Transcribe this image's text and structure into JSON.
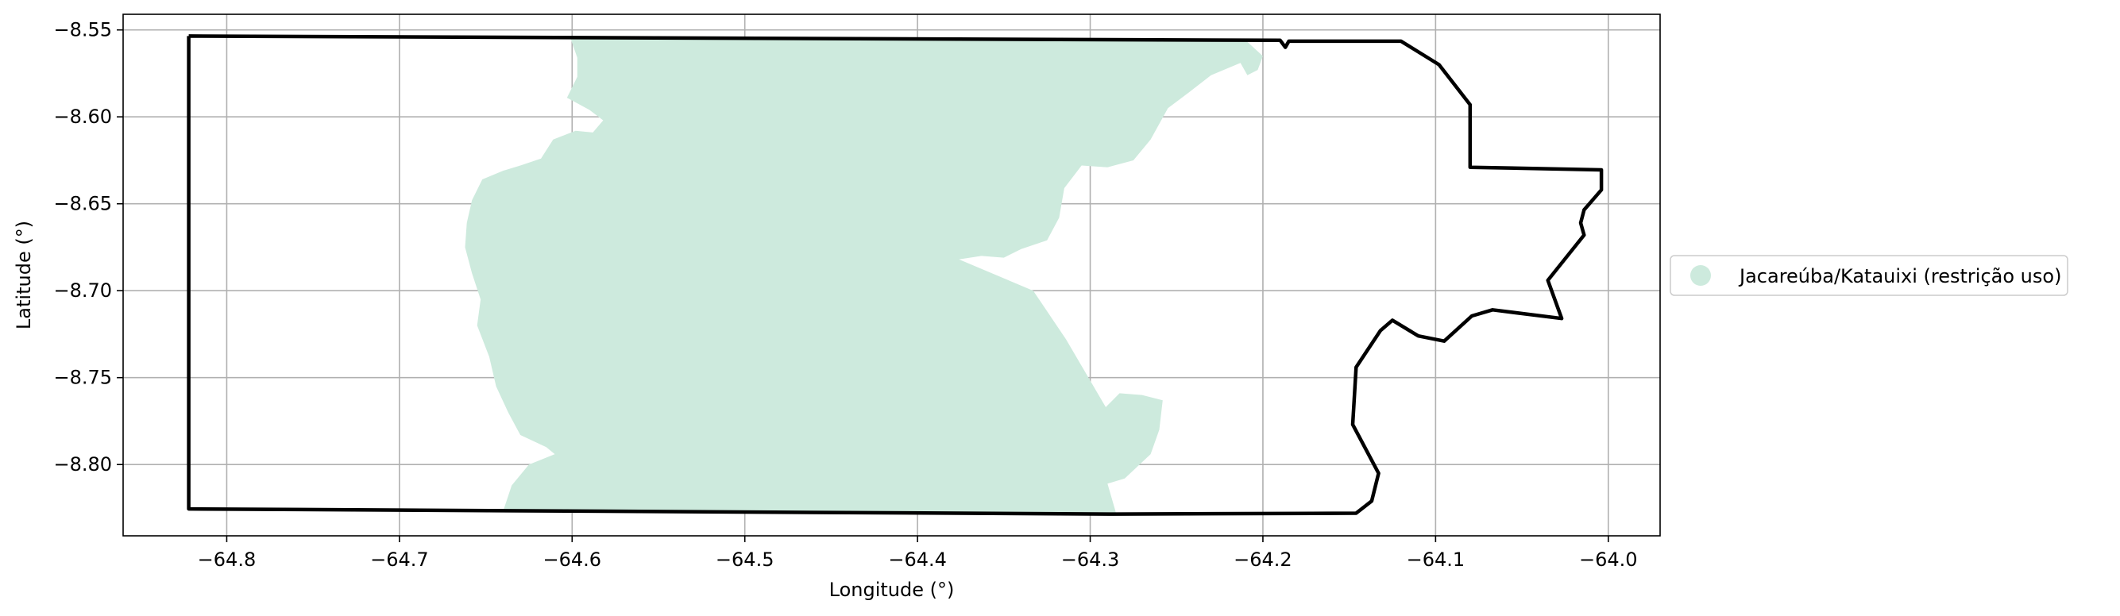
{
  "chart_data": {
    "type": "map",
    "xlabel": "Longitude (°)",
    "ylabel": "Latitude (°)",
    "xlim": [
      -64.86,
      -63.97
    ],
    "ylim": [
      -8.841,
      -8.541
    ],
    "xticks": [
      -64.8,
      -64.7,
      -64.6,
      -64.5,
      -64.4,
      -64.3,
      -64.2,
      -64.1,
      -64.0
    ],
    "xtick_labels": [
      "−64.8",
      "−64.7",
      "−64.6",
      "−64.5",
      "−64.4",
      "−64.3",
      "−64.2",
      "−64.1",
      "−64.0"
    ],
    "yticks": [
      -8.55,
      -8.6,
      -8.65,
      -8.7,
      -8.75,
      -8.8
    ],
    "ytick_labels": [
      "−8.55",
      "−8.60",
      "−8.65",
      "−8.70",
      "−8.75",
      "−8.80"
    ],
    "grid": true,
    "legend": {
      "placement": "right-center-outside",
      "entries": [
        {
          "label": "Jacareúba/Katauixi (restrição uso)",
          "color": "#cdeadd",
          "marker": "circle"
        }
      ]
    },
    "colors": {
      "fill": "#cdeadd",
      "boundary": "#000000",
      "grid": "#b0b0b0"
    },
    "boundary": [
      [
        -64.822,
        -8.5535
      ],
      [
        -64.19,
        -8.556
      ],
      [
        -64.187,
        -8.56
      ],
      [
        -64.185,
        -8.5565
      ],
      [
        -64.12,
        -8.5565
      ],
      [
        -64.098,
        -8.57
      ],
      [
        -64.08,
        -8.593
      ],
      [
        -64.08,
        -8.629
      ],
      [
        -64.004,
        -8.6305
      ],
      [
        -64.004,
        -8.642
      ],
      [
        -64.014,
        -8.6535
      ],
      [
        -64.016,
        -8.661
      ],
      [
        -64.014,
        -8.668
      ],
      [
        -64.035,
        -8.694
      ],
      [
        -64.027,
        -8.716
      ],
      [
        -64.067,
        -8.711
      ],
      [
        -64.079,
        -8.7145
      ],
      [
        -64.095,
        -8.729
      ],
      [
        -64.11,
        -8.726
      ],
      [
        -64.125,
        -8.717
      ],
      [
        -64.132,
        -8.723
      ],
      [
        -64.146,
        -8.744
      ],
      [
        -64.148,
        -8.777
      ],
      [
        -64.133,
        -8.805
      ],
      [
        -64.137,
        -8.821
      ],
      [
        -64.146,
        -8.828
      ],
      [
        -64.287,
        -8.8285
      ],
      [
        -64.822,
        -8.8255
      ],
      [
        -64.822,
        -8.5535
      ]
    ],
    "area": [
      [
        -64.601,
        -8.5545
      ],
      [
        -64.21,
        -8.556
      ],
      [
        -64.2,
        -8.565
      ],
      [
        -64.203,
        -8.573
      ],
      [
        -64.209,
        -8.576
      ],
      [
        -64.213,
        -8.569
      ],
      [
        -64.23,
        -8.576
      ],
      [
        -64.243,
        -8.586
      ],
      [
        -64.255,
        -8.595
      ],
      [
        -64.265,
        -8.613
      ],
      [
        -64.275,
        -8.625
      ],
      [
        -64.29,
        -8.629
      ],
      [
        -64.305,
        -8.628
      ],
      [
        -64.315,
        -8.641
      ],
      [
        -64.318,
        -8.658
      ],
      [
        -64.325,
        -8.671
      ],
      [
        -64.34,
        -8.676
      ],
      [
        -64.35,
        -8.681
      ],
      [
        -64.363,
        -8.68
      ],
      [
        -64.376,
        -8.682
      ],
      [
        -64.333,
        -8.7
      ],
      [
        -64.314,
        -8.728
      ],
      [
        -64.291,
        -8.767
      ],
      [
        -64.283,
        -8.759
      ],
      [
        -64.27,
        -8.76
      ],
      [
        -64.258,
        -8.763
      ],
      [
        -64.26,
        -8.78
      ],
      [
        -64.265,
        -8.794
      ],
      [
        -64.28,
        -8.808
      ],
      [
        -64.29,
        -8.811
      ],
      [
        -64.285,
        -8.828
      ],
      [
        -64.64,
        -8.827
      ],
      [
        -64.635,
        -8.812
      ],
      [
        -64.625,
        -8.8
      ],
      [
        -64.61,
        -8.794
      ],
      [
        -64.615,
        -8.79
      ],
      [
        -64.63,
        -8.783
      ],
      [
        -64.637,
        -8.77
      ],
      [
        -64.644,
        -8.755
      ],
      [
        -64.648,
        -8.738
      ],
      [
        -64.655,
        -8.72
      ],
      [
        -64.653,
        -8.705
      ],
      [
        -64.658,
        -8.69
      ],
      [
        -64.662,
        -8.675
      ],
      [
        -64.661,
        -8.661
      ],
      [
        -64.658,
        -8.648
      ],
      [
        -64.652,
        -8.636
      ],
      [
        -64.64,
        -8.631
      ],
      [
        -64.63,
        -8.628
      ],
      [
        -64.618,
        -8.624
      ],
      [
        -64.611,
        -8.613
      ],
      [
        -64.598,
        -8.608
      ],
      [
        -64.588,
        -8.609
      ],
      [
        -64.582,
        -8.602
      ],
      [
        -64.59,
        -8.596
      ],
      [
        -64.603,
        -8.589
      ],
      [
        -64.597,
        -8.577
      ],
      [
        -64.597,
        -8.566
      ],
      [
        -64.601,
        -8.5545
      ]
    ]
  }
}
